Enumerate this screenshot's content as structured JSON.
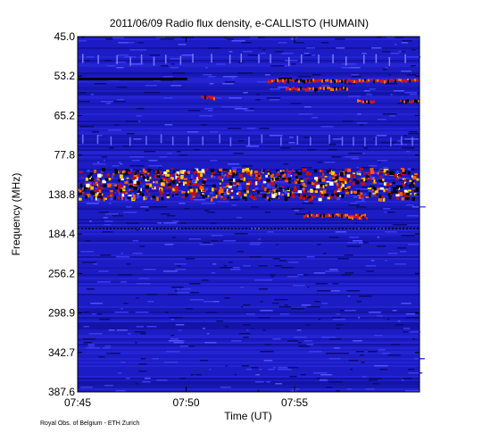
{
  "chart_data": {
    "type": "spectrogram",
    "title": "2011/06/09  Radio flux density, e-CALLISTO (HUMAIN)",
    "xlabel": "Time (UT)",
    "ylabel": "Frequency (MHz)",
    "footer": "Royal Obs. of Belgium - ETH Zurich",
    "xticks": [
      "07:45",
      "07:50",
      "07:55"
    ],
    "yticks": [
      {
        "value": 45,
        "label": "45.0"
      },
      {
        "value": 53.2,
        "label": "53.2"
      },
      {
        "value": 65.2,
        "label": "65.2"
      },
      {
        "value": 77.8,
        "label": "77.8"
      },
      {
        "value": 138.8,
        "label": "138.8"
      },
      {
        "value": 184.4,
        "label": "184.4"
      },
      {
        "value": 256.2,
        "label": "256.2"
      },
      {
        "value": 298.9,
        "label": "298.9"
      },
      {
        "value": 342.7,
        "label": "342.7"
      },
      {
        "value": 387.6,
        "label": "387.6"
      }
    ],
    "background_color": "#1c1cc4"
  }
}
